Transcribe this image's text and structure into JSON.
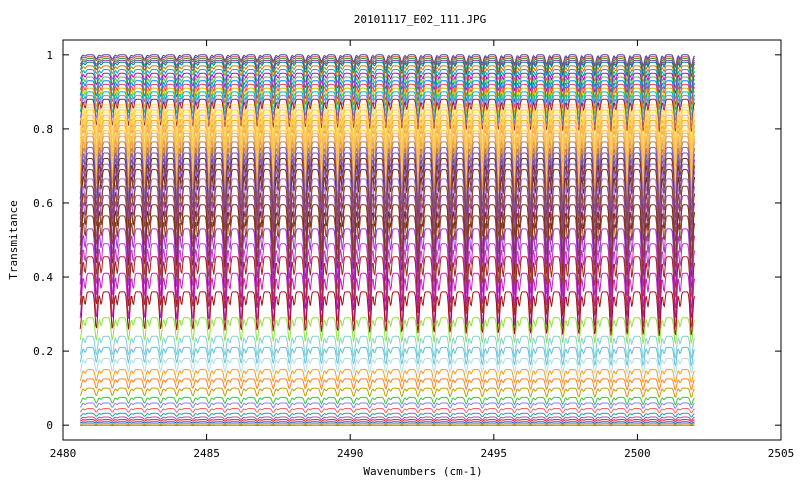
{
  "chart_data": {
    "type": "line",
    "title": "20101117_E02_111.JPG",
    "xlabel": "Wavenumbers (cm-1)",
    "ylabel": "Transmitance",
    "xlim": [
      2480,
      2505
    ],
    "ylim": [
      -0.04,
      1.04
    ],
    "x_range": [
      2480.6,
      2502
    ],
    "x_ticks": [
      2480,
      2485,
      2490,
      2495,
      2500,
      2505
    ],
    "x_tick_labels": [
      "2480",
      "2485",
      "2490",
      "2495",
      "2500",
      "2505"
    ],
    "y_ticks": [
      0,
      0.2,
      0.4,
      0.6,
      0.8,
      1
    ],
    "y_tick_labels": [
      "0",
      "0.2",
      "0.4",
      "0.6",
      "0.8",
      "1"
    ],
    "grid": false,
    "legend": "none",
    "absorption_line_spacing_cm1": 0.56,
    "series": [
      {
        "baseline": 1.0,
        "depth_start": 0.01,
        "depth_end": 0.03,
        "color": "#4040c0"
      },
      {
        "baseline": 0.995,
        "depth_start": 0.01,
        "depth_end": 0.03,
        "color": "#c04040"
      },
      {
        "baseline": 0.99,
        "depth_start": 0.015,
        "depth_end": 0.035,
        "color": "#40a040"
      },
      {
        "baseline": 0.985,
        "depth_start": 0.015,
        "depth_end": 0.04,
        "color": "#8040c0"
      },
      {
        "baseline": 0.98,
        "depth_start": 0.02,
        "depth_end": 0.04,
        "color": "#008080"
      },
      {
        "baseline": 0.97,
        "depth_start": 0.02,
        "depth_end": 0.045,
        "color": "#c08000"
      },
      {
        "baseline": 0.96,
        "depth_start": 0.025,
        "depth_end": 0.05,
        "color": "#00a0c0"
      },
      {
        "baseline": 0.95,
        "depth_start": 0.03,
        "depth_end": 0.055,
        "color": "#c000c0"
      },
      {
        "baseline": 0.94,
        "depth_start": 0.035,
        "depth_end": 0.06,
        "color": "#40c040"
      },
      {
        "baseline": 0.93,
        "depth_start": 0.04,
        "depth_end": 0.065,
        "color": "#0080ff"
      },
      {
        "baseline": 0.92,
        "depth_start": 0.045,
        "depth_end": 0.07,
        "color": "#ff4040"
      },
      {
        "baseline": 0.91,
        "depth_start": 0.05,
        "depth_end": 0.075,
        "color": "#c0c000"
      },
      {
        "baseline": 0.9,
        "depth_start": 0.055,
        "depth_end": 0.08,
        "color": "#00c0a0"
      },
      {
        "baseline": 0.89,
        "depth_start": 0.06,
        "depth_end": 0.085,
        "color": "#8080ff"
      },
      {
        "baseline": 0.88,
        "depth_start": 0.07,
        "depth_end": 0.09,
        "color": "#a02020"
      },
      {
        "baseline": 0.865,
        "depth_start": 0.07,
        "depth_end": 0.1,
        "color": "#ffd060"
      },
      {
        "baseline": 0.858,
        "depth_start": 0.075,
        "depth_end": 0.105,
        "color": "#ffe080"
      },
      {
        "baseline": 0.851,
        "depth_start": 0.08,
        "depth_end": 0.11,
        "color": "#ffc040"
      },
      {
        "baseline": 0.844,
        "depth_start": 0.085,
        "depth_end": 0.115,
        "color": "#fff070"
      },
      {
        "baseline": 0.837,
        "depth_start": 0.09,
        "depth_end": 0.12,
        "color": "#ffb030"
      },
      {
        "baseline": 0.83,
        "depth_start": 0.095,
        "depth_end": 0.125,
        "color": "#ffe060"
      },
      {
        "baseline": 0.823,
        "depth_start": 0.1,
        "depth_end": 0.13,
        "color": "#f0a040"
      },
      {
        "baseline": 0.816,
        "depth_start": 0.105,
        "depth_end": 0.135,
        "color": "#ffd050"
      },
      {
        "baseline": 0.809,
        "depth_start": 0.11,
        "depth_end": 0.14,
        "color": "#ffa060"
      },
      {
        "baseline": 0.802,
        "depth_start": 0.115,
        "depth_end": 0.145,
        "color": "#fff090"
      },
      {
        "baseline": 0.795,
        "depth_start": 0.12,
        "depth_end": 0.15,
        "color": "#f0c040"
      },
      {
        "baseline": 0.788,
        "depth_start": 0.125,
        "depth_end": 0.155,
        "color": "#ffb050"
      },
      {
        "baseline": 0.78,
        "depth_start": 0.13,
        "depth_end": 0.16,
        "color": "#e0a060"
      },
      {
        "baseline": 0.765,
        "depth_start": 0.14,
        "depth_end": 0.17,
        "color": "#c08040"
      },
      {
        "baseline": 0.75,
        "depth_start": 0.14,
        "depth_end": 0.175,
        "color": "#8060c0"
      },
      {
        "baseline": 0.735,
        "depth_start": 0.145,
        "depth_end": 0.18,
        "color": "#7050b0"
      },
      {
        "baseline": 0.72,
        "depth_start": 0.15,
        "depth_end": 0.185,
        "color": "#8b2a10"
      },
      {
        "baseline": 0.705,
        "depth_start": 0.15,
        "depth_end": 0.19,
        "color": "#9060d0"
      },
      {
        "baseline": 0.69,
        "depth_start": 0.155,
        "depth_end": 0.2,
        "color": "#7a2a10"
      },
      {
        "baseline": 0.665,
        "depth_start": 0.16,
        "depth_end": 0.2,
        "color": "#a070e0"
      },
      {
        "baseline": 0.645,
        "depth_start": 0.16,
        "depth_end": 0.2,
        "color": "#8b3a20"
      },
      {
        "baseline": 0.62,
        "depth_start": 0.16,
        "depth_end": 0.2,
        "color": "#9b4aa0"
      },
      {
        "baseline": 0.595,
        "depth_start": 0.16,
        "depth_end": 0.2,
        "color": "#7a2a10"
      },
      {
        "baseline": 0.565,
        "depth_start": 0.16,
        "depth_end": 0.2,
        "color": "#8b3a20"
      },
      {
        "baseline": 0.53,
        "depth_start": 0.15,
        "depth_end": 0.19,
        "color": "#a030d0"
      },
      {
        "baseline": 0.49,
        "depth_start": 0.14,
        "depth_end": 0.18,
        "color": "#c030c0"
      },
      {
        "baseline": 0.455,
        "depth_start": 0.13,
        "depth_end": 0.17,
        "color": "#a02020"
      },
      {
        "baseline": 0.41,
        "depth_start": 0.12,
        "depth_end": 0.15,
        "color": "#c020c0"
      },
      {
        "baseline": 0.36,
        "depth_start": 0.1,
        "depth_end": 0.12,
        "color": "#a01010"
      },
      {
        "baseline": 0.29,
        "depth_start": 0.06,
        "depth_end": 0.07,
        "color": "#90e040"
      },
      {
        "baseline": 0.24,
        "depth_start": 0.05,
        "depth_end": 0.06,
        "color": "#80d0d0"
      },
      {
        "baseline": 0.21,
        "depth_start": 0.04,
        "depth_end": 0.05,
        "color": "#60c0e0"
      },
      {
        "baseline": 0.18,
        "depth_start": 0.035,
        "depth_end": 0.04,
        "color": "#b0e0e0"
      },
      {
        "baseline": 0.15,
        "depth_start": 0.03,
        "depth_end": 0.035,
        "color": "#f0a020"
      },
      {
        "baseline": 0.125,
        "depth_start": 0.025,
        "depth_end": 0.03,
        "color": "#ff8020"
      },
      {
        "baseline": 0.1,
        "depth_start": 0.02,
        "depth_end": 0.025,
        "color": "#c0a000"
      },
      {
        "baseline": 0.075,
        "depth_start": 0.015,
        "depth_end": 0.02,
        "color": "#40c040"
      },
      {
        "baseline": 0.06,
        "depth_start": 0.012,
        "depth_end": 0.015,
        "color": "#8080ff"
      },
      {
        "baseline": 0.045,
        "depth_start": 0.01,
        "depth_end": 0.012,
        "color": "#ff6060"
      },
      {
        "baseline": 0.032,
        "depth_start": 0.008,
        "depth_end": 0.01,
        "color": "#20a0a0"
      },
      {
        "baseline": 0.022,
        "depth_start": 0.006,
        "depth_end": 0.008,
        "color": "#c040c0"
      },
      {
        "baseline": 0.015,
        "depth_start": 0.004,
        "depth_end": 0.005,
        "color": "#d02020"
      },
      {
        "baseline": 0.009,
        "depth_start": 0.003,
        "depth_end": 0.004,
        "color": "#2040c0"
      },
      {
        "baseline": 0.004,
        "depth_start": 0.002,
        "depth_end": 0.002,
        "color": "#a0a000"
      },
      {
        "baseline": 0.0,
        "depth_start": 0.001,
        "depth_end": 0.001,
        "color": "#e06020"
      }
    ]
  }
}
